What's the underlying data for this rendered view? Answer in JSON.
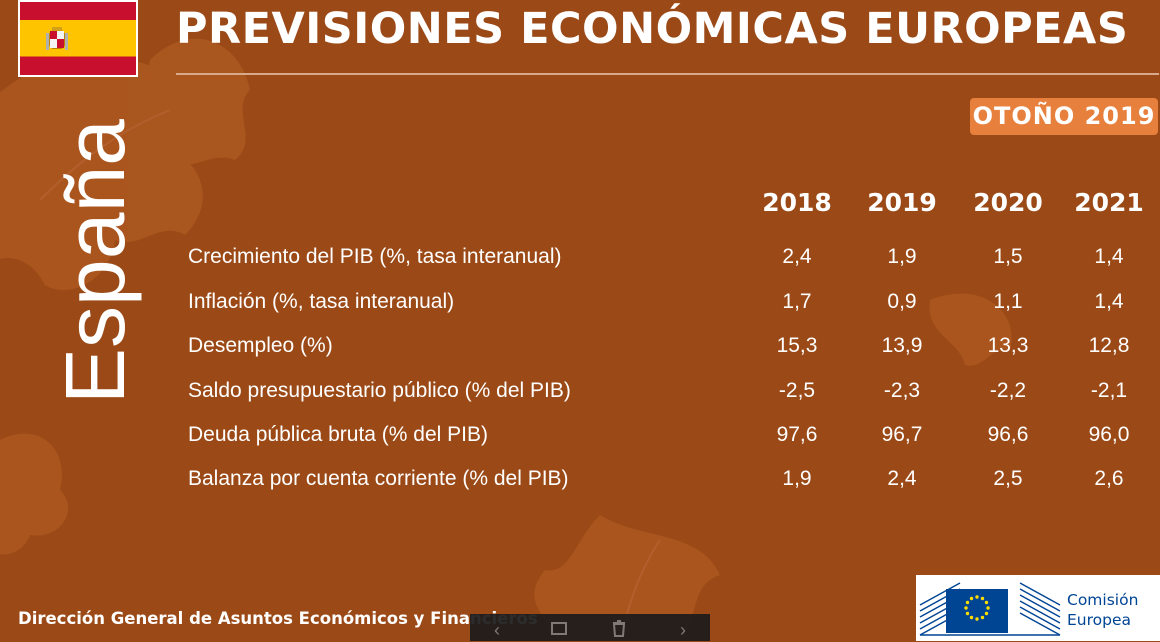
{
  "header": {
    "title": "PREVISIONES ECONÓMICAS EUROPEAS",
    "season": "OTOÑO 2019",
    "country": "España"
  },
  "flag": {
    "colors": [
      "#c8102e",
      "#ffc400",
      "#c8102e"
    ],
    "icon": "spain-flag-icon"
  },
  "table": {
    "years": [
      "2018",
      "2019",
      "2020",
      "2021"
    ],
    "rows": [
      {
        "label": "Crecimiento del PIB (%, tasa interanual)",
        "values": [
          "2,4",
          "1,9",
          "1,5",
          "1,4"
        ]
      },
      {
        "label": "Inflación (%, tasa interanual)",
        "values": [
          "1,7",
          "0,9",
          "1,1",
          "1,4"
        ]
      },
      {
        "label": "Desempleo (%)",
        "values": [
          "15,3",
          "13,9",
          "13,3",
          "12,8"
        ]
      },
      {
        "label": "Saldo presupuestario público (% del PIB)",
        "values": [
          "-2,5",
          "-2,3",
          "-2,2",
          "-2,1"
        ]
      },
      {
        "label": "Deuda pública bruta (% del PIB)",
        "values": [
          "97,6",
          "96,7",
          "96,6",
          "96,0"
        ]
      },
      {
        "label": "Balanza por cuenta corriente (% del PIB)",
        "values": [
          "1,9",
          "2,4",
          "2,5",
          "2,6"
        ]
      }
    ]
  },
  "footer": {
    "directorate": "Dirección General de Asuntos Económicos y Financieros",
    "logo_line1": "Comisión",
    "logo_line2": "Europea"
  },
  "colors": {
    "background": "#9b4a17",
    "badge": "#e8803d",
    "logo_blue": "#004494",
    "eu_star": "#ffdd00"
  },
  "toolbar": {
    "icons": [
      "chevron-left-icon",
      "window-icon",
      "trash-icon",
      "chevron-right-icon"
    ]
  }
}
